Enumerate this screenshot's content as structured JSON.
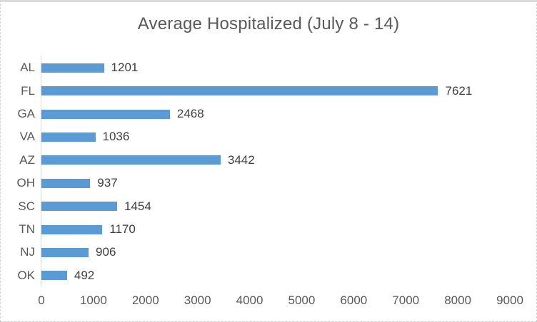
{
  "chart_data": {
    "type": "bar",
    "orientation": "horizontal",
    "title": "Average Hospitalized (July 8 - 14)",
    "categories": [
      "AL",
      "FL",
      "GA",
      "VA",
      "AZ",
      "OH",
      "SC",
      "TN",
      "NJ",
      "OK"
    ],
    "values": [
      1201,
      7621,
      2468,
      1036,
      3442,
      937,
      1454,
      1170,
      906,
      492
    ],
    "data_labels": [
      "1201",
      "7621",
      "2468",
      "1036",
      "3442",
      "937",
      "1454",
      "1170",
      "906",
      "492"
    ],
    "xlabel": "",
    "ylabel": "",
    "xlim": [
      0,
      9000
    ],
    "x_ticks": [
      0,
      1000,
      2000,
      3000,
      4000,
      5000,
      6000,
      7000,
      8000,
      9000
    ],
    "x_tick_labels": [
      "0",
      "1000",
      "2000",
      "3000",
      "4000",
      "5000",
      "6000",
      "7000",
      "8000",
      "9000"
    ],
    "grid": false,
    "legend": false,
    "show_data_labels": true,
    "colors": {
      "bar": "#5b9bd5",
      "title_text": "#595959",
      "axis_text": "#595959",
      "data_label_text": "#404040",
      "axis_line": "#d9d9d9",
      "chart_border": "#d9d9d9"
    }
  }
}
